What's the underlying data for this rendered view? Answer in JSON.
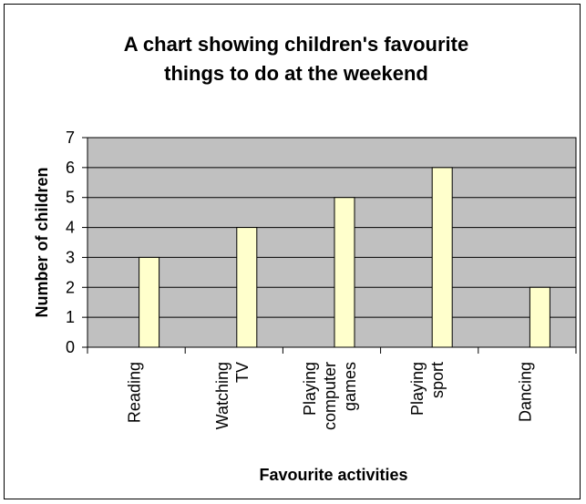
{
  "chart_data": {
    "type": "bar",
    "title_lines": [
      "A chart showing children's favourite",
      "things to do at the weekend"
    ],
    "xlabel": "Favourite activities",
    "ylabel": "Number of children",
    "categories": [
      [
        "Reading"
      ],
      [
        "Watching",
        "TV"
      ],
      [
        "Playing",
        "computer",
        "games"
      ],
      [
        "Playing",
        "sport"
      ],
      [
        "Dancing"
      ]
    ],
    "values": [
      3,
      4,
      5,
      6,
      2
    ],
    "ylim": [
      0,
      7
    ],
    "yticks": [
      "0",
      "1",
      "2",
      "3",
      "4",
      "5",
      "6",
      "7"
    ],
    "grid": true,
    "legend": "none",
    "colors": {
      "plot_background": "#c0c0c0",
      "bar_fill": "#ffffcc",
      "bar_stroke": "#000000",
      "gridline": "#000000"
    }
  }
}
